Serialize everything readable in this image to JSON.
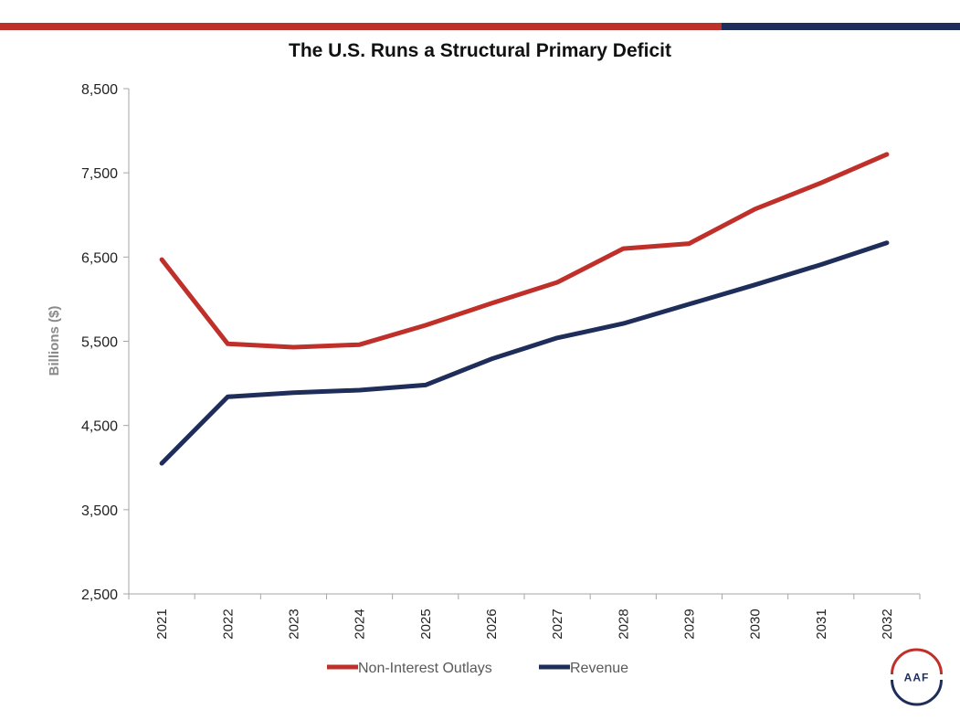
{
  "colors": {
    "accent_red": "#c0302b",
    "accent_navy": "#1f2d5a",
    "axis": "#a6a6a6"
  },
  "logo": {
    "text": "AAF"
  },
  "chart_data": {
    "type": "line",
    "title": "The U.S. Runs a Structural Primary Deficit",
    "xlabel": "",
    "ylabel": "Billions ($)",
    "ylim": [
      2500,
      8500
    ],
    "yticks": [
      2500,
      3500,
      4500,
      5500,
      6500,
      7500,
      8500
    ],
    "ytick_labels": [
      "2,500",
      "3,500",
      "4,500",
      "5,500",
      "6,500",
      "7,500",
      "8,500"
    ],
    "categories": [
      "2021",
      "2022",
      "2023",
      "2024",
      "2025",
      "2026",
      "2027",
      "2028",
      "2029",
      "2030",
      "2031",
      "2032"
    ],
    "grid": false,
    "legend_position": "bottom",
    "series": [
      {
        "name": "Non-Interest Outlays",
        "color": "#c0302b",
        "values": [
          6470,
          5470,
          5430,
          5460,
          5690,
          5950,
          6200,
          6600,
          6660,
          7070,
          7380,
          7720
        ]
      },
      {
        "name": "Revenue",
        "color": "#1f2d5a",
        "values": [
          4050,
          4840,
          4890,
          4920,
          4980,
          5290,
          5540,
          5710,
          5940,
          6170,
          6410,
          6670
        ]
      }
    ]
  }
}
